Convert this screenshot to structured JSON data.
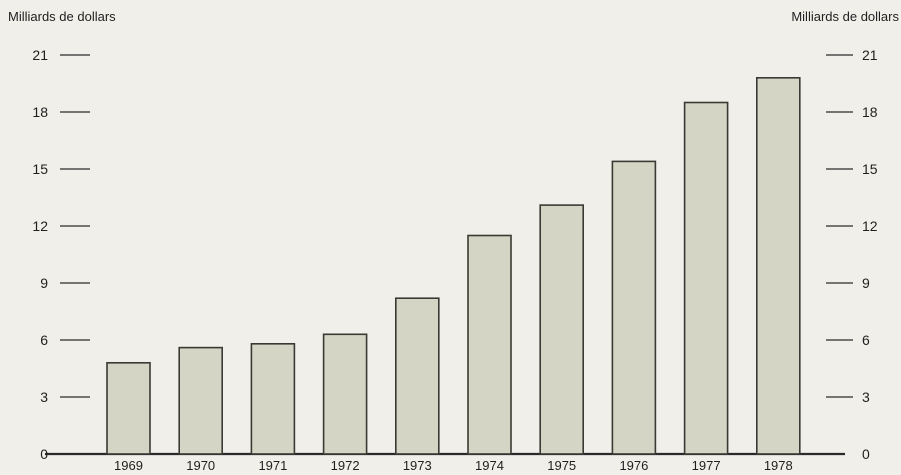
{
  "chart_data": {
    "type": "bar",
    "ylabel_left": "Milliards de dollars",
    "ylabel_right": "Milliards de dollars",
    "categories": [
      "1969",
      "1970",
      "1971",
      "1972",
      "1973",
      "1974",
      "1975",
      "1976",
      "1977",
      "1978"
    ],
    "values": [
      4.8,
      5.6,
      5.8,
      6.3,
      8.2,
      11.5,
      13.1,
      15.4,
      18.5,
      19.8
    ],
    "ylim": [
      0,
      21
    ],
    "yticks": [
      0,
      3,
      6,
      9,
      12,
      15,
      18,
      21
    ],
    "grid": false,
    "legend": "none",
    "colors": {
      "bar_fill": "#d4d5c4",
      "bar_stroke": "#3a3a34",
      "axis": "#2a2a2a",
      "background": "#f1efea"
    }
  }
}
